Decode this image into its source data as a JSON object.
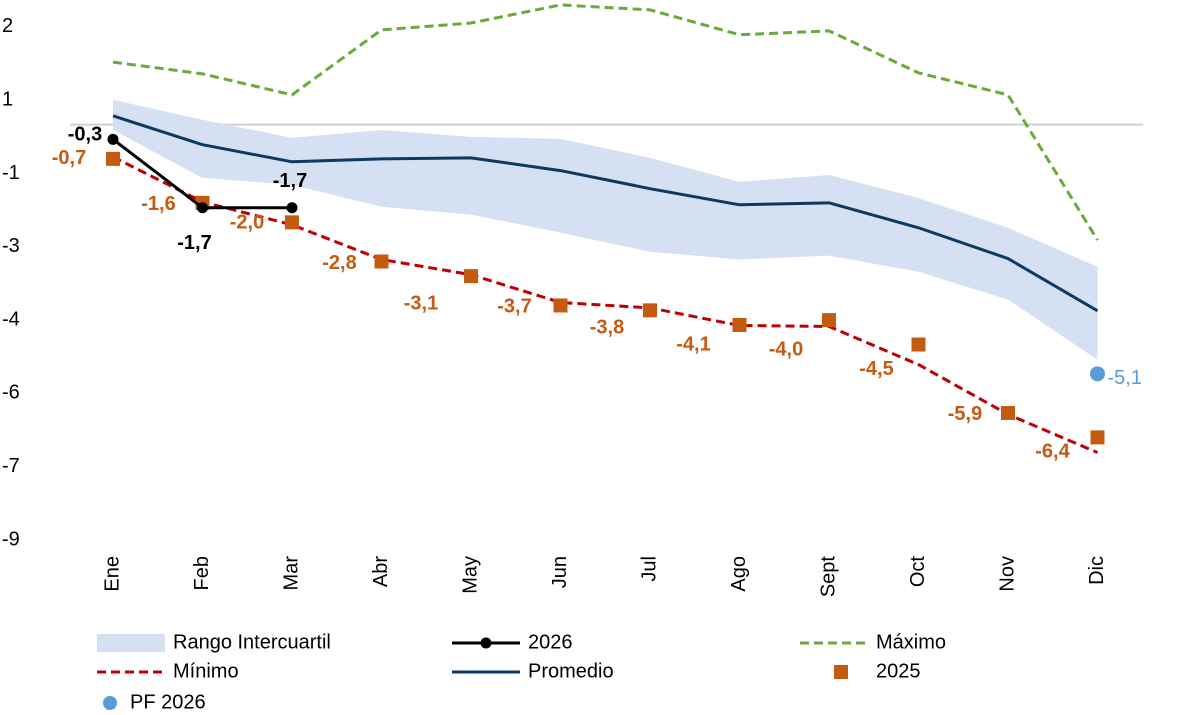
{
  "chart_data": {
    "type": "line",
    "categories": [
      "Ene",
      "Feb",
      "Mar",
      "Abr",
      "May",
      "Jun",
      "Jul",
      "Ago",
      "Sept",
      "Oct",
      "Nov",
      "Dic"
    ],
    "ylim": [
      -8.5,
      2.5
    ],
    "yticks": [
      2,
      {
        "value": 0.5,
        "label": "1"
      },
      -1,
      {
        "value": -2.5,
        "label": "-3"
      },
      -4,
      {
        "value": -5.5,
        "label": "-6"
      },
      -7,
      {
        "value": -8.5,
        "label": "-9"
      }
    ],
    "series": [
      {
        "name": "Rango Intercuartil",
        "type": "band",
        "color": "#d6e0f3",
        "low": [
          -0.11,
          -1.09,
          -1.23,
          -1.68,
          -1.84,
          -2.21,
          -2.6,
          -2.76,
          -2.68,
          -3.01,
          -3.58,
          -4.81
        ],
        "high": [
          0.51,
          0.1,
          -0.27,
          -0.11,
          -0.25,
          -0.29,
          -0.68,
          -1.17,
          -1.03,
          -1.5,
          -2.11,
          -2.91
        ]
      },
      {
        "name": "2026",
        "type": "line",
        "color": "#000000",
        "line_style": "solid",
        "marker": "circle",
        "values": [
          -0.3,
          -1.7,
          -1.7,
          null,
          null,
          null,
          null,
          null,
          null,
          null,
          null,
          null
        ],
        "value_labels": [
          "-0,3",
          "-1,7",
          "-1,7",
          null,
          null,
          null,
          null,
          null,
          null,
          null,
          null,
          null
        ]
      },
      {
        "name": "Máximo",
        "type": "line",
        "color": "#6aaa3a",
        "line_style": "dashed",
        "values": [
          1.28,
          1.04,
          0.61,
          1.94,
          2.08,
          2.45,
          2.35,
          1.84,
          1.92,
          1.06,
          0.61,
          -2.36
        ]
      },
      {
        "name": "Mínimo",
        "type": "line",
        "color": "#c00000",
        "line_style": "dashed",
        "values": [
          -0.66,
          -1.58,
          -2.05,
          -2.76,
          -3.07,
          -3.64,
          -3.75,
          -4.11,
          -4.13,
          -4.91,
          -5.93,
          -6.71
        ]
      },
      {
        "name": "Promedio",
        "type": "line",
        "color": "#0e3a62",
        "line_style": "solid",
        "values": [
          0.18,
          -0.41,
          -0.76,
          -0.7,
          -0.68,
          -0.94,
          -1.31,
          -1.64,
          -1.6,
          -2.11,
          -2.74,
          -3.81
        ]
      },
      {
        "name": "2025",
        "type": "scatter",
        "color": "#c55a11",
        "marker": "square",
        "values": [
          -0.7,
          -1.6,
          -2.0,
          -2.8,
          -3.1,
          -3.7,
          -3.8,
          -4.1,
          -4.0,
          -4.5,
          -5.9,
          -6.4
        ],
        "value_labels": [
          "-0,7",
          "-1,6",
          "-2,0",
          "-2,8",
          "-3,1",
          "-3,7",
          "-3,8",
          "-4,1",
          "-4,0",
          "-4,5",
          "-5,9",
          "-6,4"
        ]
      },
      {
        "name": "PF 2026",
        "type": "scatter",
        "color": "#5b9bd5",
        "marker": "circle",
        "values": [
          null,
          null,
          null,
          null,
          null,
          null,
          null,
          null,
          null,
          null,
          null,
          -5.1
        ],
        "value_labels": [
          null,
          null,
          null,
          null,
          null,
          null,
          null,
          null,
          null,
          null,
          null,
          "-5,1"
        ]
      }
    ]
  }
}
